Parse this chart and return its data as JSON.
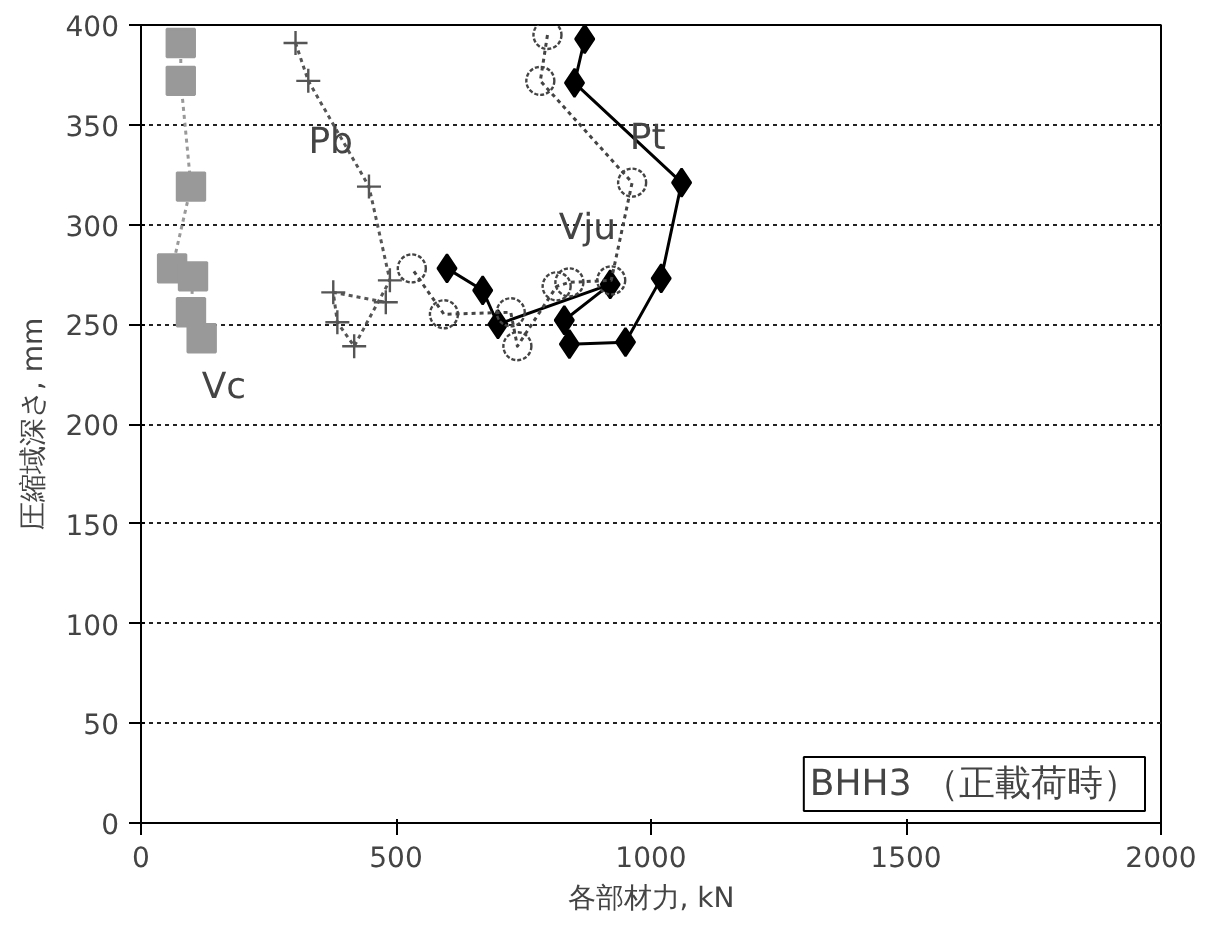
{
  "chart_data": {
    "type": "line",
    "xlabel": "各部材力, kN",
    "ylabel": "圧縮域深さ, mm",
    "xlim": [
      0,
      2000
    ],
    "ylim": [
      0,
      400
    ],
    "xticks": [
      0,
      500,
      1000,
      1500,
      2000
    ],
    "yticks": [
      0,
      50,
      100,
      150,
      200,
      250,
      300,
      350,
      400
    ],
    "grid": "y",
    "series": [
      {
        "name": "Pt",
        "color": "#000000",
        "marker": "diamond",
        "line_style": "solid",
        "x": [
          870,
          850,
          1060,
          1020,
          950,
          840,
          830,
          920,
          700,
          670,
          600
        ],
        "values": [
          393,
          371,
          321,
          273,
          241,
          240,
          252,
          270,
          250,
          267,
          278
        ]
      },
      {
        "name": "Vju",
        "color": "#444444",
        "marker": "circle",
        "line_style": "dotted",
        "x": [
          797,
          783,
          963,
          922,
          840,
          815,
          738,
          725,
          594,
          531
        ],
        "values": [
          395,
          372,
          321,
          272,
          271,
          269,
          239,
          256,
          255,
          278
        ]
      },
      {
        "name": "Pb",
        "color": "#555555",
        "marker": "cross",
        "line_style": "dotted",
        "x": [
          303,
          328,
          447,
          488,
          418,
          385,
          377,
          480
        ],
        "values": [
          391,
          372,
          319,
          272,
          239,
          251,
          266,
          261
        ]
      },
      {
        "name": "Vc",
        "color": "#999999",
        "marker": "square",
        "line_style": "dotted",
        "x": [
          78,
          78,
          98,
          61,
          102,
          98,
          119
        ],
        "values": [
          391,
          372,
          319,
          278,
          274,
          256,
          243
        ]
      }
    ],
    "annotations": [
      "BHH3 （正載荷時）"
    ]
  }
}
